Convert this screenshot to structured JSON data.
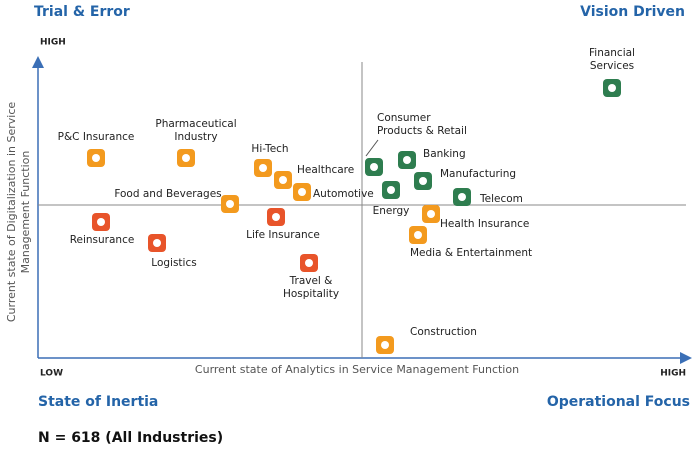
{
  "quadrants": {
    "top_left": "Trial & Error",
    "top_right": "Vision Driven",
    "bottom_left": "State of Inertia",
    "bottom_right": "Operational Focus"
  },
  "axes": {
    "y_label": [
      "Current state of Digitalization in Service",
      "Management  Function"
    ],
    "x_label": "Current state of Analytics in Service Management Function",
    "y_high": "HIGH",
    "x_low": "LOW",
    "x_high": "HIGH"
  },
  "nodes": [
    {
      "label": [
        "Financial",
        "Services"
      ]
    },
    {
      "label": [
        "P&C Insurance"
      ]
    },
    {
      "label": [
        "Pharmaceutical",
        "Industry"
      ]
    },
    {
      "label": [
        "Hi-Tech"
      ]
    },
    {
      "label": [
        "Healthcare"
      ]
    },
    {
      "label": [
        "Food and Beverages"
      ]
    },
    {
      "label": [
        "Automotive"
      ]
    },
    {
      "label": [
        "Reinsurance"
      ]
    },
    {
      "label": [
        "Logistics"
      ]
    },
    {
      "label": [
        "Life Insurance"
      ]
    },
    {
      "label": [
        "Travel &",
        "Hospitality"
      ]
    },
    {
      "label": [
        "Consumer",
        "Products & Retail"
      ]
    },
    {
      "label": [
        "Banking"
      ]
    },
    {
      "label": [
        "Manufacturing"
      ]
    },
    {
      "label": [
        "Energy"
      ]
    },
    {
      "label": [
        "Telecom"
      ]
    },
    {
      "label": [
        "Health Insurance"
      ]
    },
    {
      "label": [
        "Media & Entertainment"
      ]
    },
    {
      "label": [
        "Construction"
      ]
    }
  ],
  "footnote": "N = 618 (All Industries)"
}
